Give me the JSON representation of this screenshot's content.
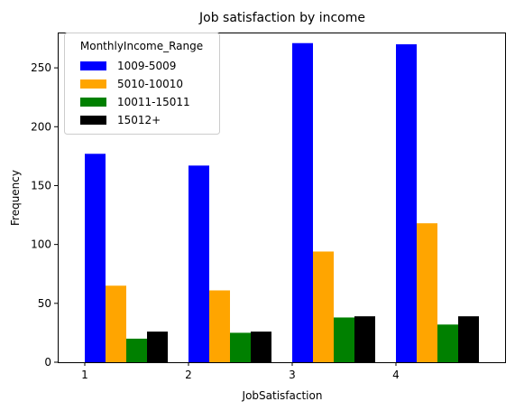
{
  "chart_data": {
    "type": "bar",
    "title": "Job satisfaction by income",
    "xlabel": "JobSatisfaction",
    "ylabel": "Frequency",
    "categories": [
      "1",
      "2",
      "3",
      "4"
    ],
    "ylim": [
      0,
      280
    ],
    "yticks": [
      0,
      50,
      100,
      150,
      200,
      250
    ],
    "grid": false,
    "legend": {
      "title": "MonthlyIncome_Range",
      "placement": "top-left"
    },
    "series": [
      {
        "name": "1009-5009",
        "color": "#0000ff",
        "values": [
          177,
          167,
          271,
          270
        ]
      },
      {
        "name": "5010-10010",
        "color": "#ffa500",
        "values": [
          65,
          61,
          94,
          118
        ]
      },
      {
        "name": "10011-15011",
        "color": "#008000",
        "values": [
          20,
          25,
          38,
          32
        ]
      },
      {
        "name": "15012+",
        "color": "#000000",
        "values": [
          26,
          26,
          39,
          39
        ]
      }
    ]
  }
}
